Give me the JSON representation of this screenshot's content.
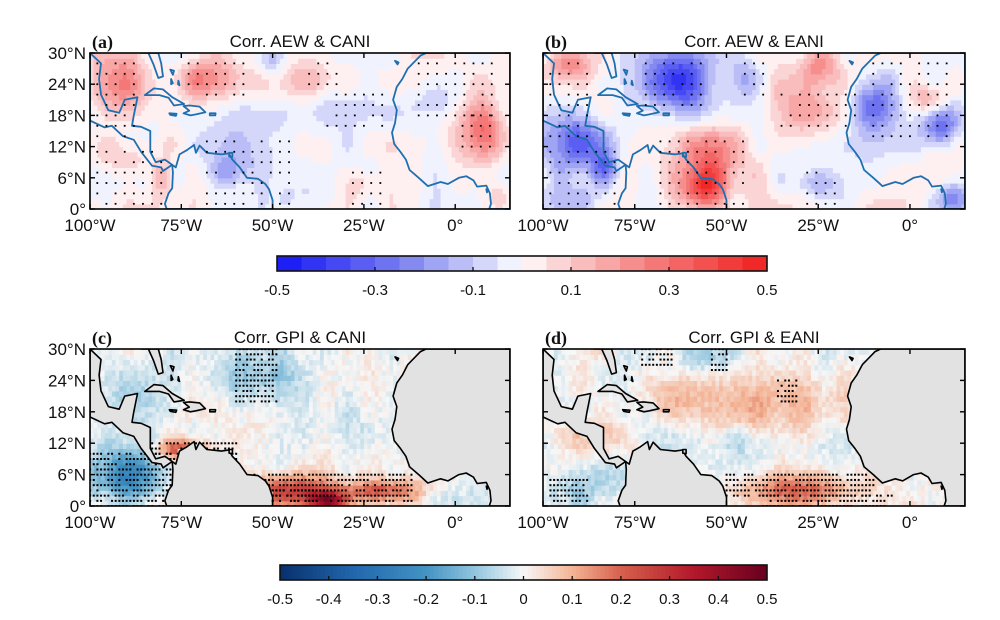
{
  "chart_data": [
    {
      "id": "a",
      "type": "heatmap",
      "panel_label": "(a)",
      "title": "Corr. AEW & CANI",
      "xlim": [
        -100,
        15
      ],
      "ylim": [
        0,
        30
      ],
      "xticks": [
        -100,
        -75,
        -50,
        -25,
        0
      ],
      "xtick_labels": [
        "100°W",
        "75°W",
        "50°W",
        "25°W",
        "0°"
      ],
      "yticks": [
        0,
        6,
        12,
        18,
        24,
        30
      ],
      "ytick_labels": [
        "0°",
        "6°N",
        "12°N",
        "18°N",
        "24°N",
        "30°N"
      ],
      "colormap": "blue-white-red",
      "coast_color": "#1f6fb0",
      "land_masked": false,
      "anomalies": [
        {
          "lon": -92,
          "lat": 24,
          "value": 0.22,
          "rlon": 10,
          "rlat": 6
        },
        {
          "lon": -67,
          "lat": 25,
          "value": 0.25,
          "rlon": 9,
          "rlat": 4
        },
        {
          "lon": -40,
          "lat": 25,
          "value": 0.12,
          "rlon": 6,
          "rlat": 4
        },
        {
          "lon": -50,
          "lat": 29,
          "value": -0.15,
          "rlon": 4,
          "rlat": 3
        },
        {
          "lon": -30,
          "lat": 19,
          "value": -0.12,
          "rlon": 12,
          "rlat": 4
        },
        {
          "lon": -60,
          "lat": 12,
          "value": -0.14,
          "rlon": 10,
          "rlat": 5
        },
        {
          "lon": -62,
          "lat": 7,
          "value": -0.18,
          "rlon": 5,
          "rlat": 3
        },
        {
          "lon": 8,
          "lat": 15,
          "value": 0.3,
          "rlon": 6,
          "rlat": 6
        },
        {
          "lon": -5,
          "lat": 21,
          "value": -0.1,
          "rlon": 5,
          "rlat": 3
        },
        {
          "lon": -90,
          "lat": 10,
          "value": 0.12,
          "rlon": 9,
          "rlat": 4
        },
        {
          "lon": -80,
          "lat": 6,
          "value": 0.2,
          "rlon": 3,
          "rlat": 3
        },
        {
          "lon": -25,
          "lat": 5,
          "value": 0.1,
          "rlon": 5,
          "rlat": 3
        },
        {
          "lon": -40,
          "lat": 2,
          "value": -0.08,
          "rlon": 8,
          "rlat": 3
        },
        {
          "lon": 12,
          "lat": 2,
          "value": 0.15,
          "rlon": 3,
          "rlat": 3
        }
      ],
      "significant_regions": [
        {
          "lon": [
            -98,
            -86
          ],
          "lat": [
            14,
            28
          ]
        },
        {
          "lon": [
            -73,
            -58
          ],
          "lat": [
            22,
            28
          ]
        },
        {
          "lon": [
            -40,
            -32
          ],
          "lat": [
            24,
            28
          ]
        },
        {
          "lon": [
            -35,
            -20
          ],
          "lat": [
            16,
            22
          ]
        },
        {
          "lon": [
            -98,
            -80
          ],
          "lat": [
            1,
            12
          ]
        },
        {
          "lon": [
            -68,
            -45
          ],
          "lat": [
            1,
            14
          ]
        },
        {
          "lon": [
            -10,
            12
          ],
          "lat": [
            18,
            28
          ]
        },
        {
          "lon": [
            2,
            10
          ],
          "lat": [
            12,
            18
          ]
        },
        {
          "lon": [
            -28,
            -20
          ],
          "lat": [
            1,
            7
          ]
        }
      ]
    },
    {
      "id": "b",
      "type": "heatmap",
      "panel_label": "(b)",
      "title": "Corr. AEW & EANI",
      "xlim": [
        -100,
        15
      ],
      "ylim": [
        0,
        30
      ],
      "xticks": [
        -100,
        -75,
        -50,
        -25,
        0
      ],
      "xtick_labels": [
        "100°W",
        "75°W",
        "50°W",
        "25°W",
        "0°"
      ],
      "yticks": [
        0,
        6,
        12,
        18,
        24,
        30
      ],
      "ytick_labels": [
        "0°",
        "6°N",
        "12°N",
        "18°N",
        "24°N",
        "30°N"
      ],
      "colormap": "blue-white-red",
      "coast_color": "#1f6fb0",
      "land_masked": false,
      "anomalies": [
        {
          "lon": -63,
          "lat": 25,
          "value": -0.4,
          "rlon": 9,
          "rlat": 6
        },
        {
          "lon": -45,
          "lat": 25,
          "value": -0.15,
          "rlon": 4,
          "rlat": 4
        },
        {
          "lon": -25,
          "lat": 27,
          "value": 0.22,
          "rlon": 6,
          "rlat": 4
        },
        {
          "lon": -93,
          "lat": 28,
          "value": 0.22,
          "rlon": 6,
          "rlat": 3
        },
        {
          "lon": -92,
          "lat": 13,
          "value": -0.3,
          "rlon": 9,
          "rlat": 6
        },
        {
          "lon": -83,
          "lat": 8,
          "value": -0.22,
          "rlon": 4,
          "rlat": 3
        },
        {
          "lon": -55,
          "lat": 9,
          "value": 0.25,
          "rlon": 10,
          "rlat": 7
        },
        {
          "lon": -57,
          "lat": 4,
          "value": 0.3,
          "rlon": 6,
          "rlat": 4
        },
        {
          "lon": -30,
          "lat": 19,
          "value": 0.18,
          "rlon": 10,
          "rlat": 5
        },
        {
          "lon": -10,
          "lat": 20,
          "value": -0.25,
          "rlon": 6,
          "rlat": 5
        },
        {
          "lon": 8,
          "lat": 16,
          "value": -0.3,
          "rlon": 5,
          "rlat": 4
        },
        {
          "lon": 5,
          "lat": 21,
          "value": 0.18,
          "rlon": 5,
          "rlat": 3
        },
        {
          "lon": -25,
          "lat": 5,
          "value": -0.15,
          "rlon": 6,
          "rlat": 3
        },
        {
          "lon": -90,
          "lat": 2,
          "value": -0.12,
          "rlon": 8,
          "rlat": 3
        },
        {
          "lon": 12,
          "lat": 2,
          "value": -0.25,
          "rlon": 4,
          "rlat": 3
        }
      ],
      "significant_regions": [
        {
          "lon": [
            -98,
            -86
          ],
          "lat": [
            14,
            28
          ]
        },
        {
          "lon": [
            -72,
            -55
          ],
          "lat": [
            20,
            28
          ]
        },
        {
          "lon": [
            -45,
            -38
          ],
          "lat": [
            22,
            28
          ]
        },
        {
          "lon": [
            -35,
            -15
          ],
          "lat": [
            16,
            22
          ]
        },
        {
          "lon": [
            -98,
            -80
          ],
          "lat": [
            1,
            12
          ]
        },
        {
          "lon": [
            -68,
            -45
          ],
          "lat": [
            1,
            14
          ]
        },
        {
          "lon": [
            -10,
            12
          ],
          "lat": [
            14,
            28
          ]
        },
        {
          "lon": [
            -28,
            -20
          ],
          "lat": [
            1,
            7
          ]
        }
      ]
    },
    {
      "id": "c",
      "type": "heatmap",
      "panel_label": "(c)",
      "title": "Corr. GPI & CANI",
      "xlim": [
        -100,
        15
      ],
      "ylim": [
        0,
        30
      ],
      "xticks": [
        -100,
        -75,
        -50,
        -25,
        0
      ],
      "xtick_labels": [
        "100°W",
        "75°W",
        "50°W",
        "25°W",
        "0°"
      ],
      "yticks": [
        0,
        6,
        12,
        18,
        24,
        30
      ],
      "ytick_labels": [
        "0°",
        "6°N",
        "12°N",
        "18°N",
        "24°N",
        "30°N"
      ],
      "colormap": "RdBu_r",
      "coast_color": "#000000",
      "land_masked": true,
      "anomalies": [
        {
          "lon": -90,
          "lat": 6,
          "value": -0.25,
          "rlon": 10,
          "rlat": 5
        },
        {
          "lon": -45,
          "lat": 3,
          "value": 0.25,
          "rlon": 12,
          "rlat": 3
        },
        {
          "lon": -35,
          "lat": 1,
          "value": 0.4,
          "rlon": 5,
          "rlat": 2
        },
        {
          "lon": -75,
          "lat": 11,
          "value": 0.2,
          "rlon": 8,
          "rlat": 2
        },
        {
          "lon": -20,
          "lat": 3,
          "value": 0.2,
          "rlon": 10,
          "rlat": 2
        },
        {
          "lon": -55,
          "lat": 25,
          "value": -0.1,
          "rlon": 15,
          "rlat": 5
        },
        {
          "lon": -90,
          "lat": 22,
          "value": -0.06,
          "rlon": 10,
          "rlat": 6
        },
        {
          "lon": -30,
          "lat": 14,
          "value": -0.05,
          "rlon": 12,
          "rlat": 4
        }
      ],
      "significant_regions": [
        {
          "lon": [
            -60,
            -49
          ],
          "lat": [
            20,
            30
          ]
        },
        {
          "lon": [
            -100,
            -78
          ],
          "lat": [
            0,
            10
          ]
        },
        {
          "lon": [
            -83,
            -60
          ],
          "lat": [
            8,
            12
          ]
        },
        {
          "lon": [
            -55,
            -12
          ],
          "lat": [
            1,
            6
          ]
        },
        {
          "lon": [
            -50,
            -35
          ],
          "lat": [
            0,
            3
          ]
        }
      ]
    },
    {
      "id": "d",
      "type": "heatmap",
      "panel_label": "(d)",
      "title": "Corr. GPI & EANI",
      "xlim": [
        -100,
        15
      ],
      "ylim": [
        0,
        30
      ],
      "xticks": [
        -100,
        -75,
        -50,
        -25,
        0
      ],
      "xtick_labels": [
        "100°W",
        "75°W",
        "50°W",
        "25°W",
        "0°"
      ],
      "yticks": [
        0,
        6,
        12,
        18,
        24,
        30
      ],
      "ytick_labels": [
        "0°",
        "6°N",
        "12°N",
        "18°N",
        "24°N",
        "30°N"
      ],
      "colormap": "RdBu_r",
      "coast_color": "#000000",
      "land_masked": true,
      "anomalies": [
        {
          "lon": -35,
          "lat": 20,
          "value": 0.1,
          "rlon": 18,
          "rlat": 6
        },
        {
          "lon": -65,
          "lat": 22,
          "value": 0.08,
          "rlon": 8,
          "rlat": 4
        },
        {
          "lon": -30,
          "lat": 3,
          "value": 0.2,
          "rlon": 15,
          "rlat": 3
        },
        {
          "lon": -90,
          "lat": 4,
          "value": -0.08,
          "rlon": 10,
          "rlat": 4
        },
        {
          "lon": -55,
          "lat": 28,
          "value": -0.08,
          "rlon": 8,
          "rlat": 3
        },
        {
          "lon": -40,
          "lat": 12,
          "value": -0.06,
          "rlon": 10,
          "rlat": 3
        },
        {
          "lon": -88,
          "lat": 14,
          "value": 0.06,
          "rlon": 8,
          "rlat": 3
        }
      ],
      "significant_regions": [
        {
          "lon": [
            -73,
            -65
          ],
          "lat": [
            27,
            30
          ]
        },
        {
          "lon": [
            -54,
            -50
          ],
          "lat": [
            26,
            30
          ]
        },
        {
          "lon": [
            -36,
            -31
          ],
          "lat": [
            20,
            24
          ]
        },
        {
          "lon": [
            -98,
            -88
          ],
          "lat": [
            1,
            5
          ]
        },
        {
          "lon": [
            -50,
            -10
          ],
          "lat": [
            2,
            6
          ]
        },
        {
          "lon": [
            -40,
            -5
          ],
          "lat": [
            0,
            2
          ]
        }
      ]
    }
  ],
  "colorbars": [
    {
      "id": "top",
      "min": -0.5,
      "max": 0.5,
      "segments": 20,
      "ticks": [
        -0.5,
        -0.3,
        -0.1,
        0.1,
        0.3,
        0.5
      ],
      "tick_labels": [
        "-0.5",
        "-0.3",
        "-0.1",
        "0.1",
        "0.3",
        "0.5"
      ],
      "colormap": "blue-white-red",
      "discrete": true
    },
    {
      "id": "bottom",
      "min": -0.5,
      "max": 0.5,
      "segments": 0,
      "ticks": [
        -0.5,
        -0.4,
        -0.3,
        -0.2,
        -0.1,
        0,
        0.1,
        0.2,
        0.3,
        0.4,
        0.5
      ],
      "tick_labels": [
        "-0.5",
        "-0.4",
        "-0.3",
        "-0.2",
        "-0.1",
        "0",
        "0.1",
        "0.2",
        "0.3",
        "0.4",
        "0.5"
      ],
      "colormap": "RdBu_r",
      "discrete": false
    }
  ]
}
